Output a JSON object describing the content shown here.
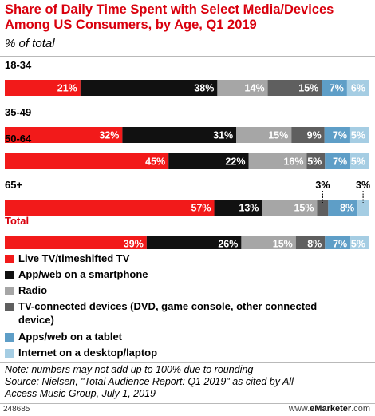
{
  "title": "Share of Daily Time Spent with Select Media/Devices Among US Consumers, by Age, Q1 2019",
  "subtitle": "% of total",
  "chart_data": {
    "type": "bar",
    "stacked": true,
    "orientation": "horizontal",
    "unit": "%",
    "categories": [
      "18-34",
      "35-49",
      "50-64",
      "65+",
      "Total"
    ],
    "series": [
      {
        "name": "Live TV/timeshifted TV",
        "color": "#f21a1a",
        "values": [
          21,
          32,
          45,
          57,
          39
        ],
        "labels": [
          "21%",
          "32%",
          "45%",
          "57%",
          "39%"
        ]
      },
      {
        "name": "App/web on a smartphone",
        "color": "#111111",
        "values": [
          38,
          31,
          22,
          13,
          26
        ],
        "labels": [
          "38%",
          "31%",
          "22%",
          "13%",
          "26%"
        ]
      },
      {
        "name": "Radio",
        "color": "#a6a6a6",
        "values": [
          14,
          15,
          16,
          15,
          15
        ],
        "labels": [
          "14%",
          "15%",
          "16%",
          "15%",
          "15%"
        ]
      },
      {
        "name": "TV-connected devices (DVD, game console, other connected device)",
        "color": "#5f5f5f",
        "values": [
          15,
          9,
          5,
          3,
          8
        ],
        "labels": [
          "15%",
          "9%",
          "5%",
          "3%",
          "8%"
        ]
      },
      {
        "name": "Apps/web on a tablet",
        "color": "#5e9ec7",
        "values": [
          7,
          7,
          7,
          8,
          7
        ],
        "labels": [
          "7%",
          "7%",
          "7%",
          "8%",
          "7%"
        ]
      },
      {
        "name": "Internet on a desktop/laptop",
        "color": "#a5cde3",
        "values": [
          6,
          5,
          5,
          3,
          5
        ],
        "labels": [
          "6%",
          "5%",
          "5%",
          "3%",
          "5%"
        ]
      }
    ],
    "highlight_category": "Total",
    "highlight_color": "#d9000d"
  },
  "legend": [
    {
      "label": "Live TV/timeshifted TV",
      "color": "#f21a1a"
    },
    {
      "label": "App/web on a smartphone",
      "color": "#111111"
    },
    {
      "label": "Radio",
      "color": "#a6a6a6"
    },
    {
      "label": "TV-connected devices (DVD, game console, other connected device)",
      "color": "#5f5f5f"
    },
    {
      "label": "Apps/web on a tablet",
      "color": "#5e9ec7"
    },
    {
      "label": "Internet on a desktop/laptop",
      "color": "#a5cde3"
    }
  ],
  "note": "Note: numbers may not add up to 100% due to rounding",
  "source": "Source: Nielsen, \"Total Audience Report: Q1 2019\" as cited by All Access Music Group, July 1, 2019",
  "chart_id": "248685",
  "brand": {
    "prefix": "www.",
    "name": "eMarketer",
    "suffix": ".com"
  }
}
